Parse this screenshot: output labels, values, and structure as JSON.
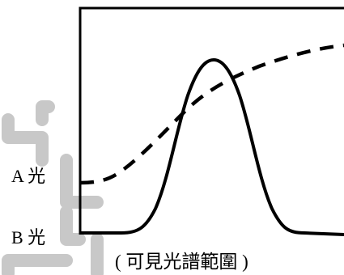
{
  "labels": {
    "curve_a": "A 光",
    "curve_b": "B 光",
    "x_axis": "( 可見光譜範圍 )"
  },
  "colors": {
    "curve": "#000000",
    "watermark": "#c8c8c8",
    "background": "#ffffff"
  },
  "series": [
    {
      "id": "A",
      "style": "dashed",
      "shape": "rising-sigmoid"
    },
    {
      "id": "B",
      "style": "solid",
      "shape": "narrow-peak"
    }
  ]
}
